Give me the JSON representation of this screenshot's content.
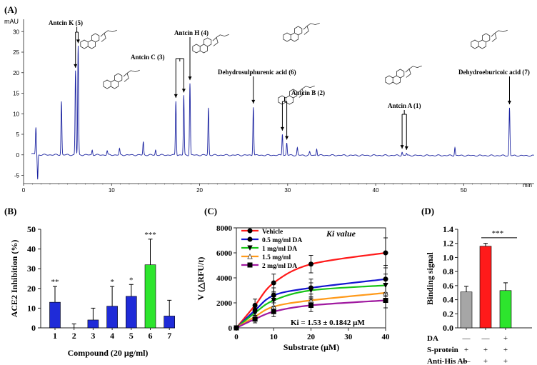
{
  "chart_data": [
    {
      "panel": "(A)",
      "type": "line",
      "ylabel": "mAU",
      "xlabel": "min",
      "xlim": [
        0,
        58
      ],
      "ylim": [
        -7,
        33
      ],
      "xticks": [
        "0",
        "10",
        "20",
        "30",
        "40",
        "50"
      ],
      "yticks": [
        "-5",
        "0",
        "5",
        "10",
        "15",
        "20",
        "25",
        "30"
      ],
      "peaks": [
        {
          "t": 1.4,
          "h": 6.5
        },
        {
          "t": 1.6,
          "h": -6
        },
        {
          "t": 4.3,
          "h": 13
        },
        {
          "t": 5.9,
          "h": 20.5
        },
        {
          "t": 6.2,
          "h": 26.5
        },
        {
          "t": 7.8,
          "h": 1.2
        },
        {
          "t": 9.5,
          "h": 1.0
        },
        {
          "t": 10.9,
          "h": 1.5
        },
        {
          "t": 13.6,
          "h": 3.2
        },
        {
          "t": 15.0,
          "h": 1.2
        },
        {
          "t": 17.3,
          "h": 13.2
        },
        {
          "t": 18.2,
          "h": 14.5
        },
        {
          "t": 18.9,
          "h": 17.5
        },
        {
          "t": 21.0,
          "h": 11.5
        },
        {
          "t": 26.1,
          "h": 11.8
        },
        {
          "t": 29.4,
          "h": 5.2
        },
        {
          "t": 29.9,
          "h": 3.0
        },
        {
          "t": 31.1,
          "h": 1.8
        },
        {
          "t": 32.5,
          "h": 0.8
        },
        {
          "t": 33.3,
          "h": 1.6
        },
        {
          "t": 43.0,
          "h": 0.8
        },
        {
          "t": 43.5,
          "h": 0.5
        },
        {
          "t": 49.0,
          "h": 2.0
        },
        {
          "t": 55.2,
          "h": 11.6
        }
      ],
      "annotations": [
        {
          "label": "Antcin K (5)",
          "times": [
            5.9,
            6.2
          ]
        },
        {
          "label": "Antcin C (3)",
          "times": [
            17.3,
            18.2
          ]
        },
        {
          "label": "Antcin H (4)",
          "times": [
            18.9
          ]
        },
        {
          "label": "Dehydrosulphurenic acid (6)",
          "times": [
            26.1
          ]
        },
        {
          "label": "Antcin B (2)",
          "times": [
            29.4,
            29.9
          ]
        },
        {
          "label": "Antcin A (1)",
          "times": [
            43.0,
            43.5
          ]
        },
        {
          "label": "Dehydroeburicoic acid (7)",
          "times": [
            55.2
          ]
        }
      ]
    },
    {
      "panel": "(B)",
      "type": "bar",
      "xlabel": "Compound (20 μg/ml)",
      "ylabel": "ACE2 Inhibition (%)",
      "ylim": [
        0,
        50
      ],
      "yticks": [
        "0",
        "10",
        "20",
        "30",
        "40",
        "50"
      ],
      "categories": [
        "1",
        "2",
        "3",
        "4",
        "5",
        "6",
        "7"
      ],
      "values": [
        13,
        0,
        4,
        11,
        16,
        32,
        6
      ],
      "errors": [
        8,
        2,
        6,
        10,
        6,
        13,
        8
      ],
      "significance": [
        "**",
        "",
        "",
        "*",
        "*",
        "***",
        ""
      ]
    },
    {
      "panel": "(C)",
      "type": "line",
      "xlabel": "Substrate (μM)",
      "ylabel": "V (△RFU/t)",
      "xlim": [
        0,
        40
      ],
      "ylim": [
        0,
        8000
      ],
      "xticks": [
        "0",
        "10",
        "20",
        "30",
        "40"
      ],
      "yticks": [
        "0",
        "2000",
        "4000",
        "6000",
        "8000"
      ],
      "title": "Ki value",
      "annotation": "Ki = 1.53 ± 0.1842 μM",
      "x": [
        0,
        5,
        10,
        20,
        40
      ],
      "series": [
        {
          "name": "Vehicle",
          "values": [
            0,
            1800,
            3600,
            5100,
            6000
          ],
          "errors": [
            0,
            500,
            700,
            700,
            1200
          ]
        },
        {
          "name": "0.5 mg/ml DA",
          "values": [
            0,
            1400,
            2600,
            3200,
            3900
          ],
          "errors": [
            0,
            400,
            600,
            700,
            1100
          ]
        },
        {
          "name": "1 mg/ml DA",
          "values": [
            0,
            1200,
            2200,
            3000,
            3400
          ],
          "errors": [
            0,
            400,
            600,
            600,
            900
          ]
        },
        {
          "name": "1.5 mg/ml",
          "values": [
            0,
            900,
            1700,
            2200,
            2800
          ],
          "errors": [
            0,
            300,
            500,
            500,
            700
          ]
        },
        {
          "name": "2 mg/ml DA",
          "values": [
            0,
            700,
            1300,
            1800,
            2200
          ],
          "errors": [
            0,
            300,
            400,
            500,
            600
          ]
        }
      ]
    },
    {
      "panel": "(D)",
      "type": "bar",
      "ylabel": "Binding signal",
      "ylim": [
        0,
        1.4
      ],
      "yticks": [
        "0.0",
        "0.2",
        "0.4",
        "0.6",
        "0.8",
        "1.0",
        "1.2",
        "1.4"
      ],
      "values": [
        0.51,
        1.16,
        0.53
      ],
      "errors": [
        0.08,
        0.04,
        0.11
      ],
      "significance": "***",
      "rows": [
        {
          "label": "DA",
          "marks": [
            "—",
            "—",
            "+"
          ]
        },
        {
          "label": "S-protein",
          "marks": [
            "+",
            "+",
            "+"
          ]
        },
        {
          "label": "Anti-His Ab",
          "marks": [
            "—",
            "+",
            "+"
          ]
        }
      ]
    }
  ],
  "colors": {
    "trace": "#1a22a0",
    "bar_blue": "#1f2bd8",
    "bar_green": "#2de52d",
    "bar_gray": "#a6a6a6",
    "bar_red": "#ff1a1a",
    "series": [
      "#ff1a1a",
      "#1515d0",
      "#18c418",
      "#ff9a1a",
      "#a01aa0"
    ]
  }
}
